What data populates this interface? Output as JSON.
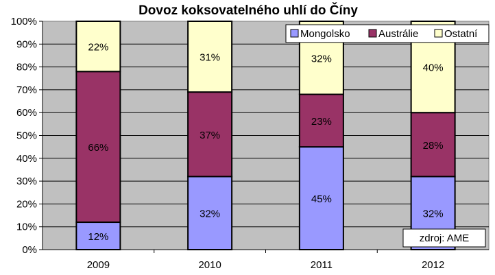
{
  "chart_data": {
    "type": "bar",
    "stacked": true,
    "percent": true,
    "title": "Dovoz koksovatelného uhlí do Číny",
    "xlabel": "",
    "ylabel": "",
    "categories": [
      "2009",
      "2010",
      "2011",
      "2012"
    ],
    "ylim": [
      0,
      100
    ],
    "yticks": [
      "0%",
      "10%",
      "20%",
      "30%",
      "40%",
      "50%",
      "60%",
      "70%",
      "80%",
      "90%",
      "100%"
    ],
    "series": [
      {
        "name": "Mongolsko",
        "values": [
          12,
          32,
          45,
          32
        ],
        "labels": [
          "12%",
          "32%",
          "45%",
          "32%"
        ],
        "color": "#9999ff"
      },
      {
        "name": "Austrálie",
        "values": [
          66,
          37,
          23,
          28
        ],
        "labels": [
          "66%",
          "37%",
          "23%",
          "28%"
        ],
        "color": "#993366"
      },
      {
        "name": "Ostatní",
        "values": [
          22,
          31,
          32,
          40
        ],
        "labels": [
          "22%",
          "31%",
          "32%",
          "40%"
        ],
        "color": "#ffffcc"
      }
    ],
    "plot_background": "#c0c0c0",
    "grid": true,
    "legend_position": "top-right",
    "annotation": "zdroj: AME"
  }
}
